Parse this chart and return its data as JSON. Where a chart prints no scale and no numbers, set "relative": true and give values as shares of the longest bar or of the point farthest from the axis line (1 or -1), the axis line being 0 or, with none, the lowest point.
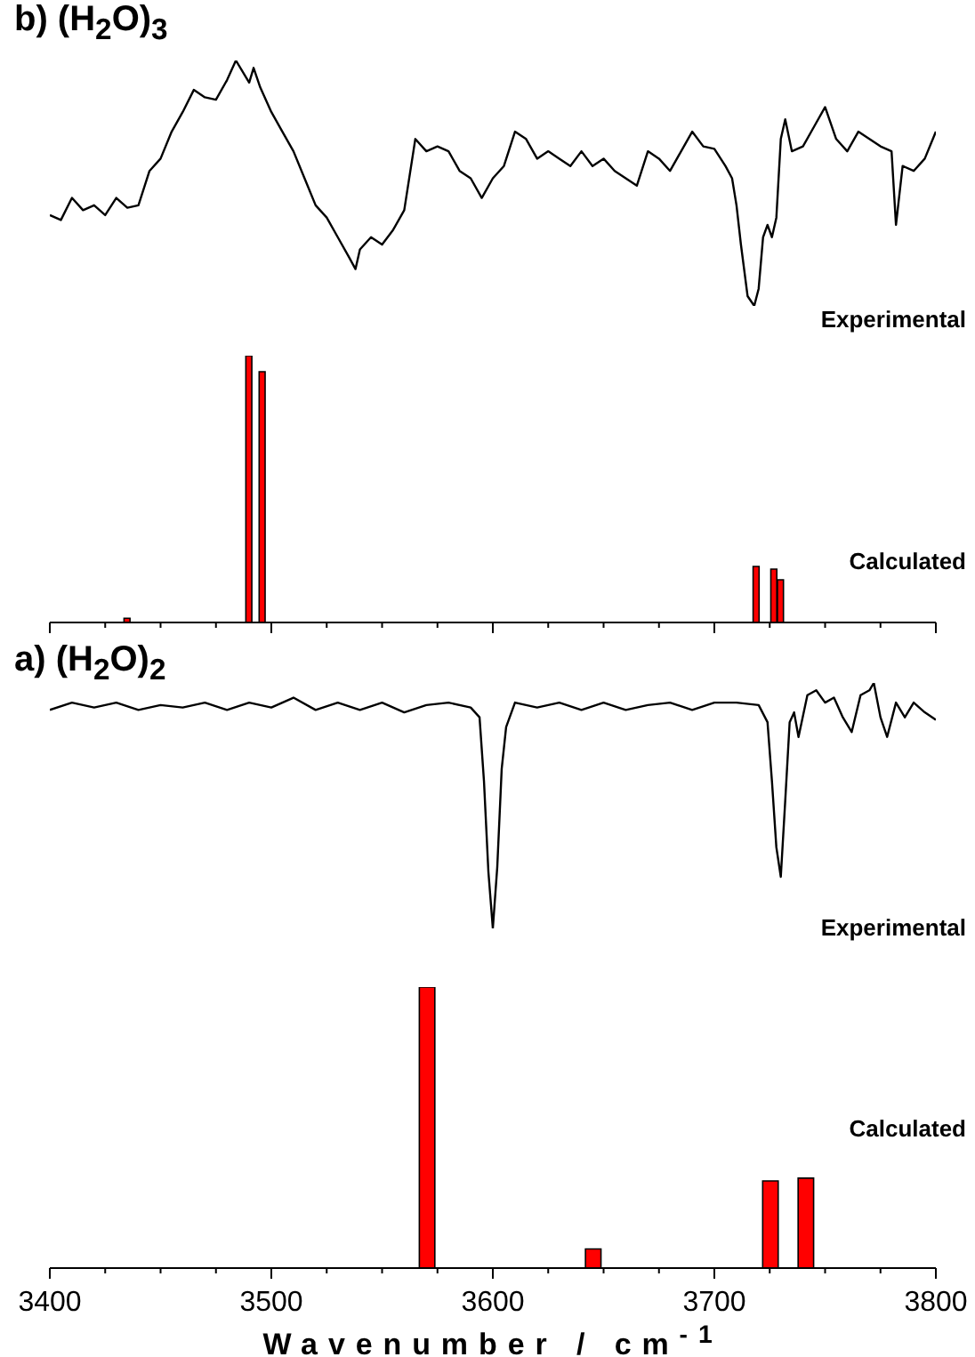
{
  "chart_data": [
    {
      "type": "line",
      "title": "b) (H$_{2}$O)$_{3}$",
      "relative": true,
      "xlim": [
        3400,
        3800
      ],
      "tick_labels": false,
      "annotations": [
        "Experimental"
      ],
      "x": [
        3400,
        3405,
        3410,
        3415,
        3420,
        3425,
        3430,
        3435,
        3440,
        3445,
        3450,
        3455,
        3460,
        3465,
        3470,
        3475,
        3480,
        3484,
        3490,
        3492,
        3495,
        3500,
        3505,
        3510,
        3515,
        3520,
        3525,
        3530,
        3535,
        3538,
        3540,
        3545,
        3550,
        3555,
        3560,
        3565,
        3570,
        3575,
        3580,
        3585,
        3590,
        3595,
        3600,
        3605,
        3610,
        3615,
        3620,
        3625,
        3630,
        3635,
        3640,
        3645,
        3650,
        3655,
        3660,
        3665,
        3670,
        3675,
        3680,
        3685,
        3690,
        3695,
        3700,
        3705,
        3708,
        3710,
        3712,
        3715,
        3718,
        3720,
        3722,
        3724,
        3726,
        3728,
        3730,
        3732,
        3735,
        3740,
        3745,
        3750,
        3755,
        3760,
        3765,
        3770,
        3775,
        3780,
        3782,
        3785,
        3790,
        3795,
        3800
      ],
      "series": [
        {
          "color": "#000000",
          "values": [
            0.37,
            0.35,
            0.44,
            0.39,
            0.41,
            0.37,
            0.44,
            0.4,
            0.41,
            0.55,
            0.6,
            0.71,
            0.79,
            0.88,
            0.85,
            0.84,
            0.92,
            1,
            0.91,
            0.97,
            0.89,
            0.79,
            0.71,
            0.63,
            0.52,
            0.41,
            0.36,
            0.28,
            0.2,
            0.15,
            0.23,
            0.28,
            0.25,
            0.31,
            0.39,
            0.68,
            0.63,
            0.65,
            0.63,
            0.55,
            0.52,
            0.44,
            0.52,
            0.57,
            0.71,
            0.68,
            0.6,
            0.63,
            0.6,
            0.57,
            0.63,
            0.57,
            0.6,
            0.55,
            0.52,
            0.49,
            0.63,
            0.6,
            0.55,
            0.63,
            0.71,
            0.65,
            0.64,
            0.57,
            0.52,
            0.41,
            0.25,
            0.04,
            0,
            0.07,
            0.28,
            0.33,
            0.28,
            0.36,
            0.68,
            0.76,
            0.63,
            0.65,
            0.73,
            0.81,
            0.68,
            0.63,
            0.71,
            0.68,
            0.65,
            0.63,
            0.33,
            0.57,
            0.55,
            0.6,
            0.71
          ]
        }
      ]
    },
    {
      "type": "bar",
      "relative": true,
      "xlim": [
        3400,
        3800
      ],
      "tick_labels": false,
      "annotations": [
        "Calculated"
      ],
      "xticks": [
        {
          "value": 3400,
          "label": null
        },
        {
          "value": 3425,
          "label": null
        },
        {
          "value": 3450,
          "label": null
        },
        {
          "value": 3475,
          "label": null
        },
        {
          "value": 3500,
          "label": null
        },
        {
          "value": 3525,
          "label": null
        },
        {
          "value": 3550,
          "label": null
        },
        {
          "value": 3575,
          "label": null
        },
        {
          "value": 3600,
          "label": null
        },
        {
          "value": 3625,
          "label": null
        },
        {
          "value": 3650,
          "label": null
        },
        {
          "value": 3675,
          "label": null
        },
        {
          "value": 3700,
          "label": null
        },
        {
          "value": 3725,
          "label": null
        },
        {
          "value": 3750,
          "label": null
        },
        {
          "value": 3775,
          "label": null
        },
        {
          "value": 3800,
          "label": null
        }
      ],
      "x": [
        3435,
        3490,
        3496,
        3719,
        3727,
        3730
      ],
      "series": [
        {
          "color": "#ff0000",
          "values": [
            0.016,
            1,
            0.94,
            0.21,
            0.2,
            0.16
          ]
        }
      ]
    },
    {
      "type": "line",
      "title": "a) (H$_{2}$O)$_{2}$",
      "relative": true,
      "xlim": [
        3400,
        3800
      ],
      "tick_labels": false,
      "annotations": [
        "Experimental"
      ],
      "x": [
        3400,
        3410,
        3420,
        3430,
        3440,
        3450,
        3460,
        3470,
        3480,
        3490,
        3500,
        3510,
        3520,
        3530,
        3540,
        3550,
        3560,
        3570,
        3580,
        3590,
        3594,
        3596,
        3598,
        3600,
        3602,
        3604,
        3606,
        3610,
        3620,
        3630,
        3640,
        3650,
        3660,
        3670,
        3680,
        3690,
        3700,
        3710,
        3720,
        3724,
        3726,
        3728,
        3730,
        3732,
        3734,
        3736,
        3738,
        3742,
        3746,
        3750,
        3754,
        3758,
        3762,
        3766,
        3770,
        3772,
        3775,
        3778,
        3782,
        3786,
        3790,
        3795,
        3800
      ],
      "series": [
        {
          "color": "#000000",
          "values": [
            0.89,
            0.92,
            0.9,
            0.92,
            0.89,
            0.91,
            0.9,
            0.92,
            0.89,
            0.92,
            0.9,
            0.94,
            0.89,
            0.92,
            0.89,
            0.92,
            0.88,
            0.91,
            0.92,
            0.9,
            0.86,
            0.6,
            0.23,
            0,
            0.25,
            0.65,
            0.82,
            0.92,
            0.9,
            0.92,
            0.89,
            0.92,
            0.89,
            0.91,
            0.92,
            0.89,
            0.92,
            0.92,
            0.91,
            0.84,
            0.6,
            0.33,
            0.21,
            0.52,
            0.84,
            0.88,
            0.78,
            0.95,
            0.97,
            0.92,
            0.94,
            0.86,
            0.8,
            0.95,
            0.97,
            1,
            0.86,
            0.78,
            0.92,
            0.86,
            0.92,
            0.88,
            0.85
          ]
        }
      ]
    },
    {
      "type": "bar",
      "relative": true,
      "xlim": [
        3400,
        3800
      ],
      "xlabel": "Wavenumber / cm$^{-1}$",
      "tick_labels": "x",
      "annotations": [
        "Calculated"
      ],
      "xticks": [
        3400,
        {
          "value": 3425,
          "label": null
        },
        {
          "value": 3450,
          "label": null
        },
        {
          "value": 3475,
          "label": null
        },
        3500,
        {
          "value": 3525,
          "label": null
        },
        {
          "value": 3550,
          "label": null
        },
        {
          "value": 3575,
          "label": null
        },
        3600,
        {
          "value": 3625,
          "label": null
        },
        {
          "value": 3650,
          "label": null
        },
        {
          "value": 3675,
          "label": null
        },
        3700,
        {
          "value": 3725,
          "label": null
        },
        {
          "value": 3750,
          "label": null
        },
        {
          "value": 3775,
          "label": null
        },
        3800
      ],
      "x": [
        3570,
        3645,
        3725,
        3741
      ],
      "series": [
        {
          "color": "#ff0000",
          "values": [
            1,
            0.068,
            0.31,
            0.32
          ]
        }
      ]
    }
  ]
}
